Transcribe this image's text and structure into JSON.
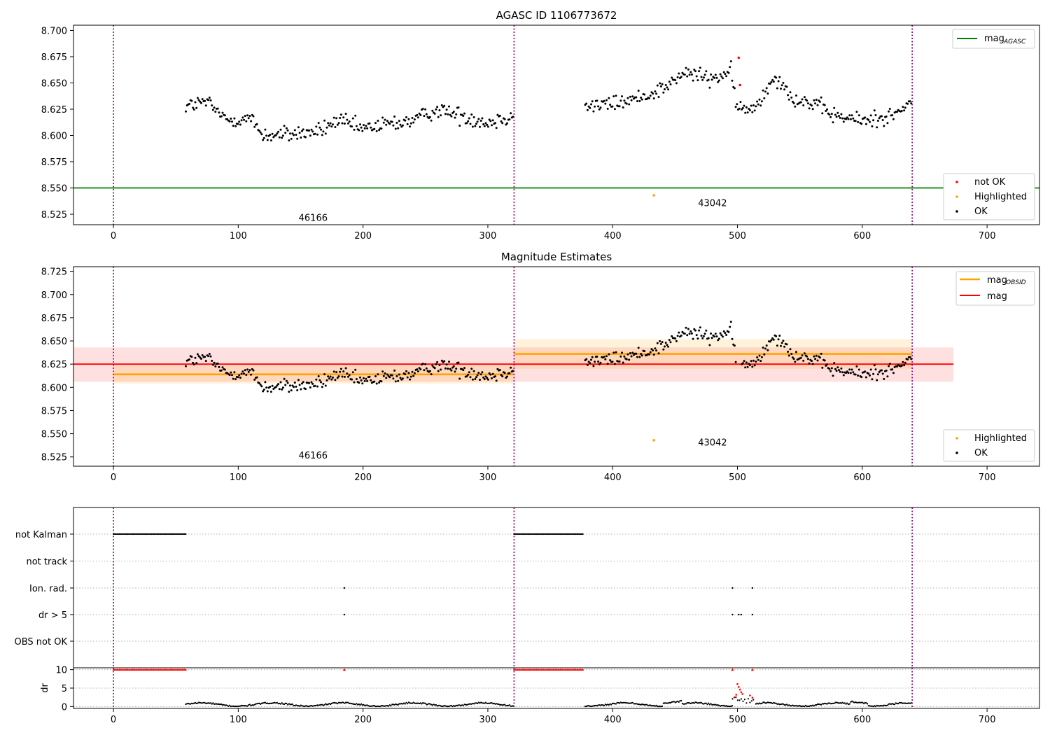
{
  "chart_data": [
    {
      "id": "agasc",
      "type": "scatter",
      "title": "AGASC ID 1106773672",
      "xlim": [
        -32,
        742
      ],
      "ylim": [
        8.515,
        8.705
      ],
      "xticks": [
        0,
        100,
        200,
        300,
        400,
        500,
        600,
        700
      ],
      "yticks": [
        "8.525",
        "8.550",
        "8.575",
        "8.600",
        "8.625",
        "8.650",
        "8.675",
        "8.700"
      ],
      "obs_boundaries": [
        0,
        321,
        640
      ],
      "obs_labels": [
        {
          "text": "46166",
          "x": 160,
          "y": 8.522
        },
        {
          "text": "43042",
          "x": 480,
          "y": 8.536
        }
      ],
      "hlines": [
        {
          "label": "mag",
          "sub": "AGASC",
          "y": 8.55,
          "x": [
            -32,
            742
          ],
          "color": "#008000"
        }
      ],
      "series": [
        {
          "name": "not OK",
          "color": "#ff0000",
          "points": [
            [
              501,
              8.674
            ],
            [
              502,
              8.648
            ]
          ]
        },
        {
          "name": "Highlighted",
          "color": "#ffa500",
          "points": [
            [
              433,
              8.543
            ]
          ]
        },
        {
          "name": "OK",
          "color": "#000000"
        }
      ]
    },
    {
      "id": "estimates",
      "type": "scatter",
      "title": "Magnitude Estimates",
      "xlim": [
        -32,
        742
      ],
      "ylim": [
        8.515,
        8.73
      ],
      "xticks": [
        0,
        100,
        200,
        300,
        400,
        500,
        600,
        700
      ],
      "yticks": [
        "8.525",
        "8.550",
        "8.575",
        "8.600",
        "8.625",
        "8.650",
        "8.675",
        "8.700",
        "8.725"
      ],
      "obs_boundaries": [
        0,
        321,
        640
      ],
      "obs_labels": [
        {
          "text": "46166",
          "x": 160,
          "y": 8.527
        },
        {
          "text": "43042",
          "x": 480,
          "y": 8.541
        }
      ],
      "mag_obsid": [
        {
          "x": [
            0,
            321
          ],
          "y": 8.614,
          "lo": 8.604,
          "hi": 8.624
        },
        {
          "x": [
            321,
            640
          ],
          "y": 8.636,
          "lo": 8.62,
          "hi": 8.652
        }
      ],
      "mag": {
        "y": 8.625,
        "lo": 8.606,
        "hi": 8.643,
        "x": [
          -32,
          673
        ]
      },
      "legend_lines": [
        {
          "label": "mag",
          "sub": "OBSID",
          "color": "#ffa500"
        },
        {
          "label": "mag",
          "sub": "",
          "color": "#ff0000"
        }
      ],
      "series": [
        {
          "name": "Highlighted",
          "color": "#ffa500",
          "points": [
            [
              433,
              8.543
            ]
          ]
        },
        {
          "name": "OK",
          "color": "#000000"
        }
      ]
    },
    {
      "id": "flags",
      "type": "scatter",
      "xlim": [
        -32,
        742
      ],
      "categories": [
        "not Kalman",
        "not track",
        "Ion. rad.",
        "dr > 5",
        "OBS not OK"
      ],
      "obs_boundaries": [
        0,
        321,
        640
      ],
      "flag_ranges": [
        {
          "category": "not Kalman",
          "x": [
            0,
            58
          ]
        },
        {
          "category": "not Kalman",
          "x": [
            321,
            377
          ]
        }
      ],
      "flag_points": [
        {
          "category": "Ion. rad.",
          "x": [
            185,
            496,
            512
          ]
        },
        {
          "category": "dr > 5",
          "x": [
            185,
            496,
            501,
            503,
            512
          ]
        }
      ]
    },
    {
      "id": "dr",
      "type": "scatter",
      "ylabel": "dr",
      "xlim": [
        -32,
        742
      ],
      "ylim": [
        -0.5,
        10.5
      ],
      "xticks": [
        0,
        100,
        200,
        300,
        400,
        500,
        600,
        700
      ],
      "yticks": [
        "0",
        "5",
        "10"
      ],
      "obs_boundaries": [
        0,
        321,
        640
      ],
      "clipped": {
        "value": 10,
        "color": "#ff0000",
        "ranges": [
          [
            0,
            58
          ],
          [
            321,
            377
          ]
        ],
        "points": [
          185,
          496,
          512
        ]
      },
      "red_points": [
        [
          498,
          2.5
        ],
        [
          499,
          3.2
        ],
        [
          500,
          6.1
        ],
        [
          501,
          5.3
        ],
        [
          502,
          4.6
        ],
        [
          503,
          3.9
        ],
        [
          504,
          3.4
        ],
        [
          510,
          3.0
        ],
        [
          512,
          2.4
        ]
      ]
    }
  ]
}
